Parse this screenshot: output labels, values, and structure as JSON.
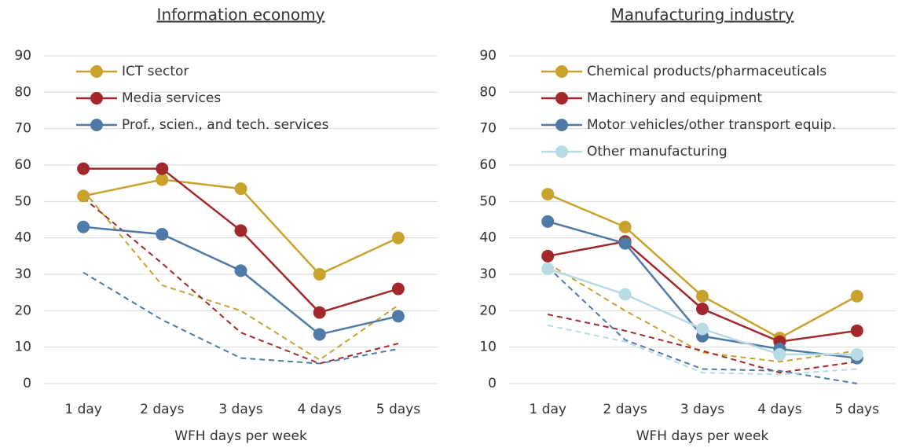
{
  "chart_data": [
    {
      "type": "line",
      "title": "Information economy",
      "xlabel": "WFH days per week",
      "categories": [
        "1 day",
        "2 days",
        "3 days",
        "4 days",
        "5 days"
      ],
      "ylim": [
        0,
        90
      ],
      "yticks": [
        0,
        10,
        20,
        30,
        40,
        50,
        60,
        70,
        80,
        90
      ],
      "grid": true,
      "legend": "upper left",
      "series": [
        {
          "name": "ICT sector",
          "color": "#c9a22c",
          "values": [
            51.5,
            56,
            53.5,
            30,
            40
          ]
        },
        {
          "name": "Media services",
          "color": "#a3282b",
          "values": [
            59,
            59,
            42,
            19.5,
            26
          ]
        },
        {
          "name": "Prof., scien., and tech. services",
          "color": "#4d7aa6",
          "values": [
            43,
            41,
            31,
            13.5,
            18.5
          ]
        },
        {
          "color": "#c9a22c",
          "dashed": true,
          "values": [
            53,
            27,
            20,
            6.5,
            21.5
          ]
        },
        {
          "color": "#a3282b",
          "dashed": true,
          "values": [
            51,
            33,
            14,
            5.5,
            11
          ]
        },
        {
          "color": "#4d7aa6",
          "dashed": true,
          "values": [
            30.5,
            17.5,
            7,
            5.5,
            9.5
          ]
        }
      ]
    },
    {
      "type": "line",
      "title": "Manufacturing industry",
      "xlabel": "WFH days per week",
      "categories": [
        "1 day",
        "2 days",
        "3 days",
        "4 days",
        "5 days"
      ],
      "ylim": [
        0,
        90
      ],
      "yticks": [
        0,
        10,
        20,
        30,
        40,
        50,
        60,
        70,
        80,
        90
      ],
      "grid": true,
      "legend": "upper left",
      "series": [
        {
          "name": "Chemical products/pharmaceuticals",
          "color": "#c9a22c",
          "values": [
            52,
            43,
            24,
            12.5,
            24
          ]
        },
        {
          "name": "Machinery and equipment",
          "color": "#a3282b",
          "values": [
            35,
            39,
            20.5,
            11.5,
            14.5
          ]
        },
        {
          "name": "Motor vehicles/other transport equip.",
          "color": "#4d7aa6",
          "values": [
            44.5,
            38.5,
            13,
            9.5,
            7
          ]
        },
        {
          "name": "Other manufacturing",
          "color": "#b7dbe5",
          "values": [
            31.5,
            24.5,
            15,
            8,
            8
          ]
        },
        {
          "color": "#c9a22c",
          "dashed": true,
          "values": [
            33,
            20,
            8.5,
            6,
            9
          ]
        },
        {
          "color": "#a3282b",
          "dashed": true,
          "values": [
            19,
            14.5,
            9,
            3,
            6
          ]
        },
        {
          "color": "#4d7aa6",
          "dashed": true,
          "values": [
            32,
            12,
            4,
            3.5,
            0
          ]
        },
        {
          "color": "#b7dbe5",
          "dashed": true,
          "values": [
            16,
            11.5,
            3,
            2.5,
            4
          ]
        }
      ]
    }
  ]
}
